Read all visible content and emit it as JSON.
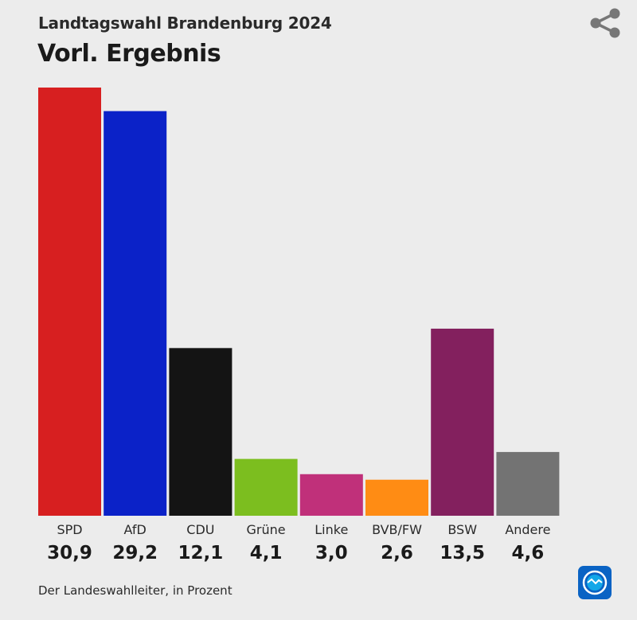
{
  "header": {
    "subtitle": "Landtagswahl Brandenburg 2024",
    "title": "Vorl. Ergebnis"
  },
  "icons": {
    "share": "share-icon",
    "logo": "tagesschau-logo"
  },
  "footer": {
    "source": "Der Landeswahlleiter, in Prozent"
  },
  "chart_data": {
    "type": "bar",
    "title": "Vorl. Ergebnis",
    "subtitle": "Landtagswahl Brandenburg 2024",
    "categories": [
      "SPD",
      "AfD",
      "CDU",
      "Grüne",
      "Linke",
      "BVB/FW",
      "BSW",
      "Andere"
    ],
    "values": [
      30.9,
      29.2,
      12.1,
      4.1,
      3.0,
      2.6,
      13.5,
      4.6
    ],
    "value_labels": [
      "30,9",
      "29,2",
      "12,1",
      "4,1",
      "3,0",
      "2,6",
      "13,5",
      "4,6"
    ],
    "colors": [
      "#d71f20",
      "#0b22c8",
      "#141414",
      "#7cbe1f",
      "#c0307a",
      "#ff8c14",
      "#83205e",
      "#737373"
    ],
    "ylim": [
      0,
      30.9
    ],
    "unit": "in Prozent",
    "grid": false,
    "legend": "none"
  }
}
